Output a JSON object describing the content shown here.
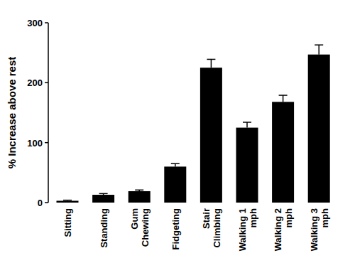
{
  "chart_data": {
    "type": "bar",
    "categories": [
      "Sitting",
      "Standing",
      "Gum\nChewing",
      "Fidgeting",
      "Stair\nClimbing",
      "Walking 1\nmph",
      "Walking 2\nmph",
      "Walking 3\nmph"
    ],
    "values": [
      3,
      13,
      19,
      60,
      225,
      125,
      168,
      247
    ],
    "errors": [
      1,
      2,
      2,
      5,
      14,
      9,
      11,
      16
    ],
    "y_label": "% Increase above rest",
    "color": "#000000",
    "ylim": [
      0,
      300
    ],
    "yticks": [
      0,
      100,
      200,
      300
    ],
    "grid": false
  }
}
